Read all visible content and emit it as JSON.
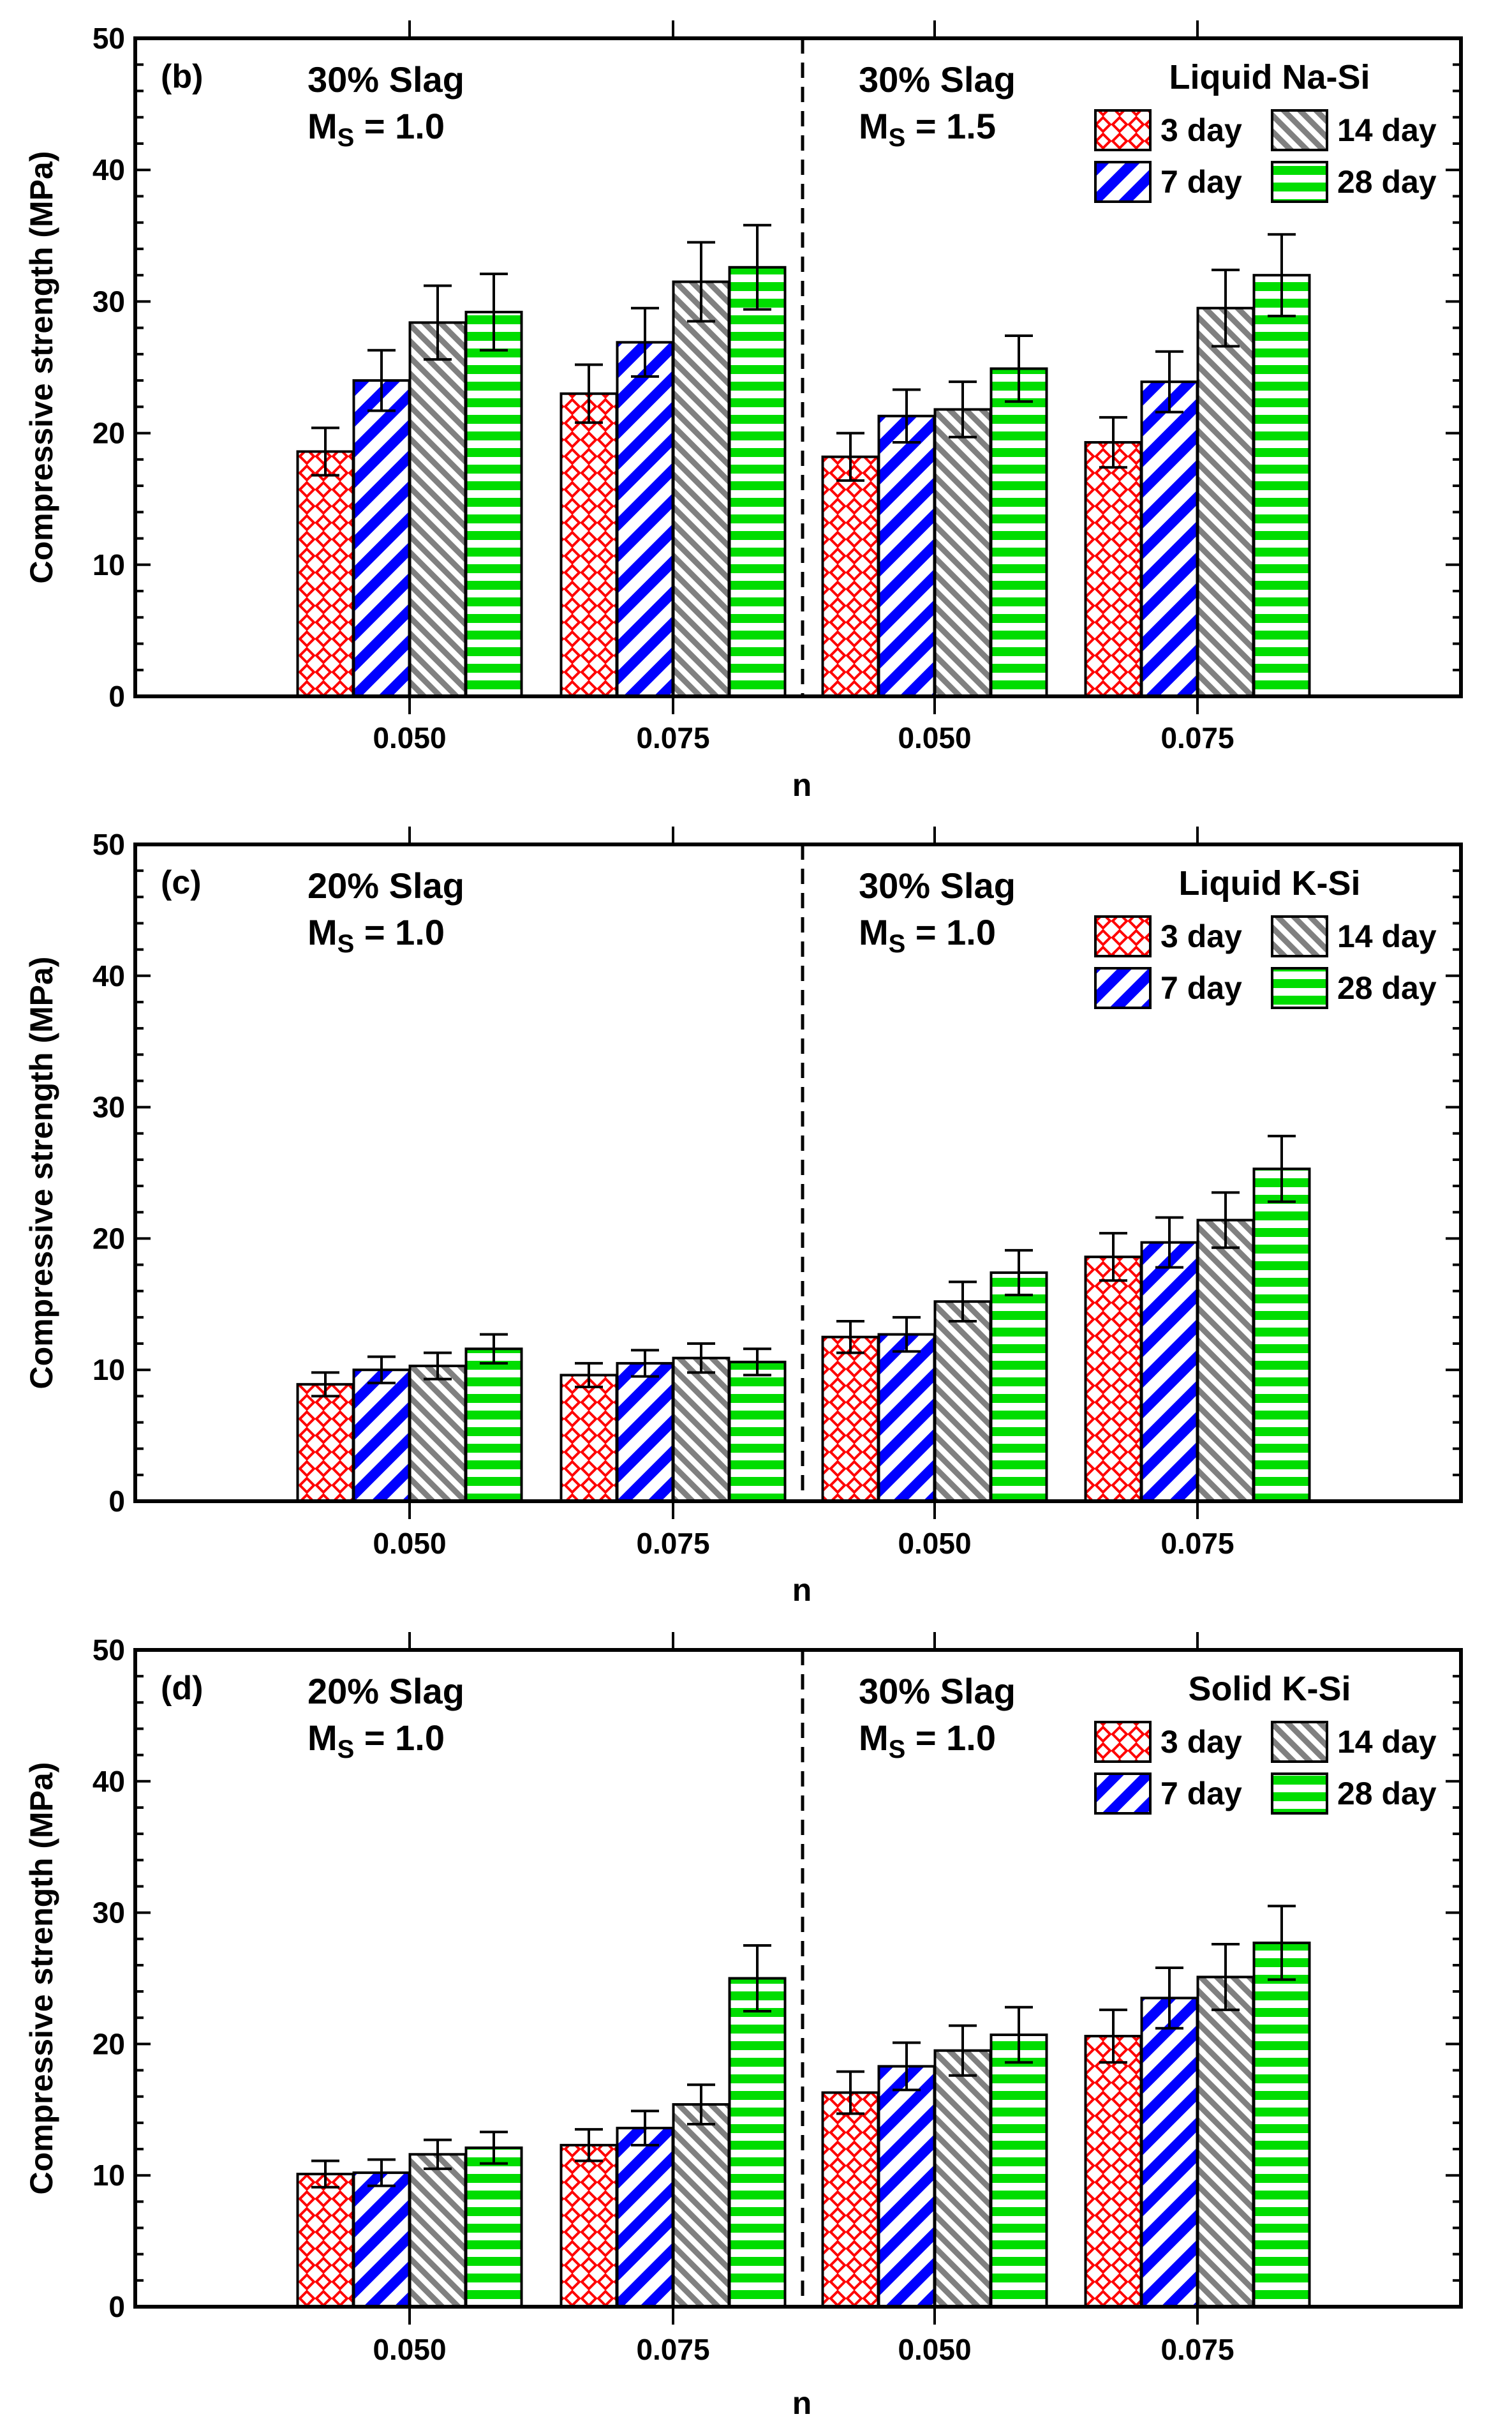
{
  "chart_data": [
    {
      "type": "bar",
      "panel_label": "(b)",
      "left_group": {
        "line1": "30% Slag",
        "line2": "M",
        "sub": "S",
        "line2_tail": " = 1.0"
      },
      "right_group": {
        "line1": "30% Slag",
        "line2": "M",
        "sub": "S",
        "line2_tail": " = 1.5"
      },
      "legend_title": "Liquid Na-Si",
      "ylabel": "Compressive strength (MPa)",
      "xlabel": "n",
      "ylim": [
        0,
        50
      ],
      "yticks": [
        "0",
        "10",
        "20",
        "30",
        "40",
        "50"
      ],
      "categories": [
        "0.050",
        "0.075",
        "0.050",
        "0.075"
      ],
      "series": [
        {
          "name": "3 day",
          "values": [
            18.6,
            23.0,
            18.2,
            19.3
          ],
          "errors": [
            1.8,
            2.2,
            1.8,
            1.9
          ]
        },
        {
          "name": "7 day",
          "values": [
            24.0,
            26.9,
            21.3,
            23.9
          ],
          "errors": [
            2.3,
            2.6,
            2.0,
            2.3
          ]
        },
        {
          "name": "14 day",
          "values": [
            28.4,
            31.5,
            21.8,
            29.5
          ],
          "errors": [
            2.8,
            3.0,
            2.1,
            2.9
          ]
        },
        {
          "name": "28 day",
          "values": [
            29.2,
            32.6,
            24.9,
            32.0
          ],
          "errors": [
            2.9,
            3.2,
            2.5,
            3.1
          ]
        }
      ]
    },
    {
      "type": "bar",
      "panel_label": "(c)",
      "left_group": {
        "line1": "20% Slag",
        "line2": "M",
        "sub": "S",
        "line2_tail": " = 1.0"
      },
      "right_group": {
        "line1": "30% Slag",
        "line2": "M",
        "sub": "S",
        "line2_tail": " = 1.0"
      },
      "legend_title": "Liquid K-Si",
      "ylabel": "Compressive strength (MPa)",
      "xlabel": "n",
      "ylim": [
        0,
        50
      ],
      "yticks": [
        "0",
        "10",
        "20",
        "30",
        "40",
        "50"
      ],
      "categories": [
        "0.050",
        "0.075",
        "0.050",
        "0.075"
      ],
      "series": [
        {
          "name": "3 day",
          "values": [
            8.9,
            9.6,
            12.5,
            18.6
          ],
          "errors": [
            0.9,
            0.9,
            1.2,
            1.8
          ]
        },
        {
          "name": "7 day",
          "values": [
            10.0,
            10.5,
            12.7,
            19.7
          ],
          "errors": [
            1.0,
            1.0,
            1.3,
            1.9
          ]
        },
        {
          "name": "14 day",
          "values": [
            10.3,
            10.9,
            15.2,
            21.4
          ],
          "errors": [
            1.0,
            1.1,
            1.5,
            2.1
          ]
        },
        {
          "name": "28 day",
          "values": [
            11.6,
            10.6,
            17.4,
            25.3
          ],
          "errors": [
            1.1,
            1.0,
            1.7,
            2.5
          ]
        }
      ]
    },
    {
      "type": "bar",
      "panel_label": "(d)",
      "left_group": {
        "line1": "20% Slag",
        "line2": "M",
        "sub": "S",
        "line2_tail": " = 1.0"
      },
      "right_group": {
        "line1": "30% Slag",
        "line2": "M",
        "sub": "S",
        "line2_tail": " = 1.0"
      },
      "legend_title": "Solid K-Si",
      "ylabel": "Compressive strength (MPa)",
      "xlabel": "n",
      "ylim": [
        0,
        50
      ],
      "yticks": [
        "0",
        "10",
        "20",
        "30",
        "40",
        "50"
      ],
      "categories": [
        "0.050",
        "0.075",
        "0.050",
        "0.075"
      ],
      "series": [
        {
          "name": "3 day",
          "values": [
            10.1,
            12.3,
            16.3,
            20.6
          ],
          "errors": [
            1.0,
            1.2,
            1.6,
            2.0
          ]
        },
        {
          "name": "7 day",
          "values": [
            10.2,
            13.6,
            18.3,
            23.5
          ],
          "errors": [
            1.0,
            1.3,
            1.8,
            2.3
          ]
        },
        {
          "name": "14 day",
          "values": [
            11.6,
            15.4,
            19.5,
            25.1
          ],
          "errors": [
            1.1,
            1.5,
            1.9,
            2.5
          ]
        },
        {
          "name": "28 day",
          "values": [
            12.1,
            25.0,
            20.7,
            27.7
          ],
          "errors": [
            1.2,
            2.5,
            2.1,
            2.8
          ]
        }
      ]
    }
  ],
  "colors": {
    "day3": "#ff0000",
    "day7": "#0000ff",
    "day14": "#808080",
    "day28": "#00dd00",
    "axis": "#000000"
  }
}
